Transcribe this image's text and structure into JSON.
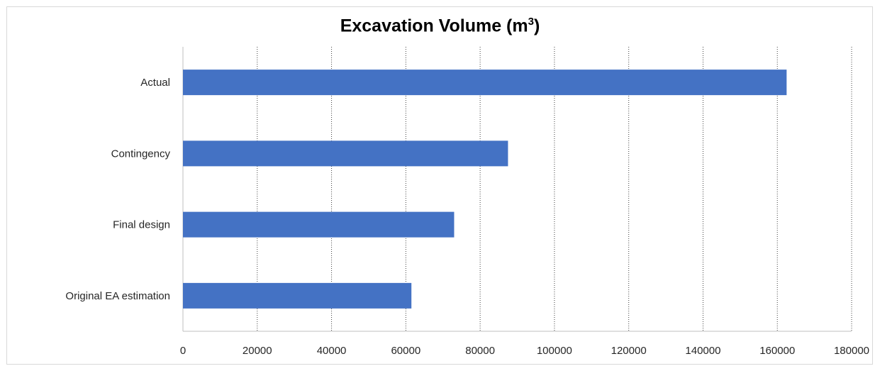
{
  "chart_data": {
    "type": "bar",
    "orientation": "horizontal",
    "title": "Excavation Volume (m",
    "title_superscript": "3",
    "title_suffix": ")",
    "categories": [
      "Actual",
      "Contingency",
      "Final design",
      "Original EA estimation"
    ],
    "values": [
      162500,
      87500,
      73000,
      61500
    ],
    "xlim": [
      0,
      180000
    ],
    "x_ticks": [
      0,
      20000,
      40000,
      60000,
      80000,
      100000,
      120000,
      140000,
      160000,
      180000
    ],
    "x_tick_labels": [
      "0",
      "20000",
      "40000",
      "60000",
      "80000",
      "100000",
      "120000",
      "140000",
      "160000",
      "180000"
    ],
    "xlabel": "",
    "ylabel": "",
    "grid": "vertical dotted",
    "bar_color": "#4472c4",
    "legend": "none"
  }
}
